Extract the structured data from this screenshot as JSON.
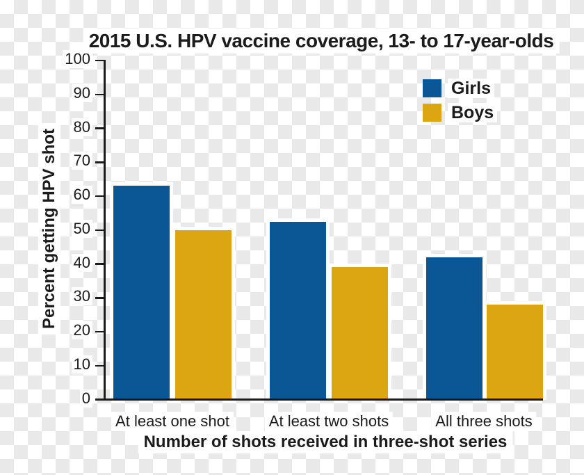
{
  "chart_data": {
    "type": "bar",
    "title": "2015 U.S. HPV vaccine coverage, 13- to 17-year-olds",
    "categories": [
      "At least one shot",
      "At least two shots",
      "All three shots"
    ],
    "series": [
      {
        "name": "Girls",
        "color": "#0B5796",
        "values": [
          63,
          52.5,
          42
        ]
      },
      {
        "name": "Boys",
        "color": "#DBA611",
        "values": [
          50,
          39,
          28
        ]
      }
    ],
    "xlabel": "Number of shots received in three-shot series",
    "ylabel": "Percent getting HPV shot",
    "ylim": [
      0,
      100
    ],
    "ytick_step": 10,
    "yticks": [
      0,
      10,
      20,
      30,
      40,
      50,
      60,
      70,
      80,
      90,
      100
    ],
    "grid": false,
    "legend_position": "top-right",
    "axis_color": "#1a1a1a",
    "background_style": "transparency-checkerboard"
  }
}
